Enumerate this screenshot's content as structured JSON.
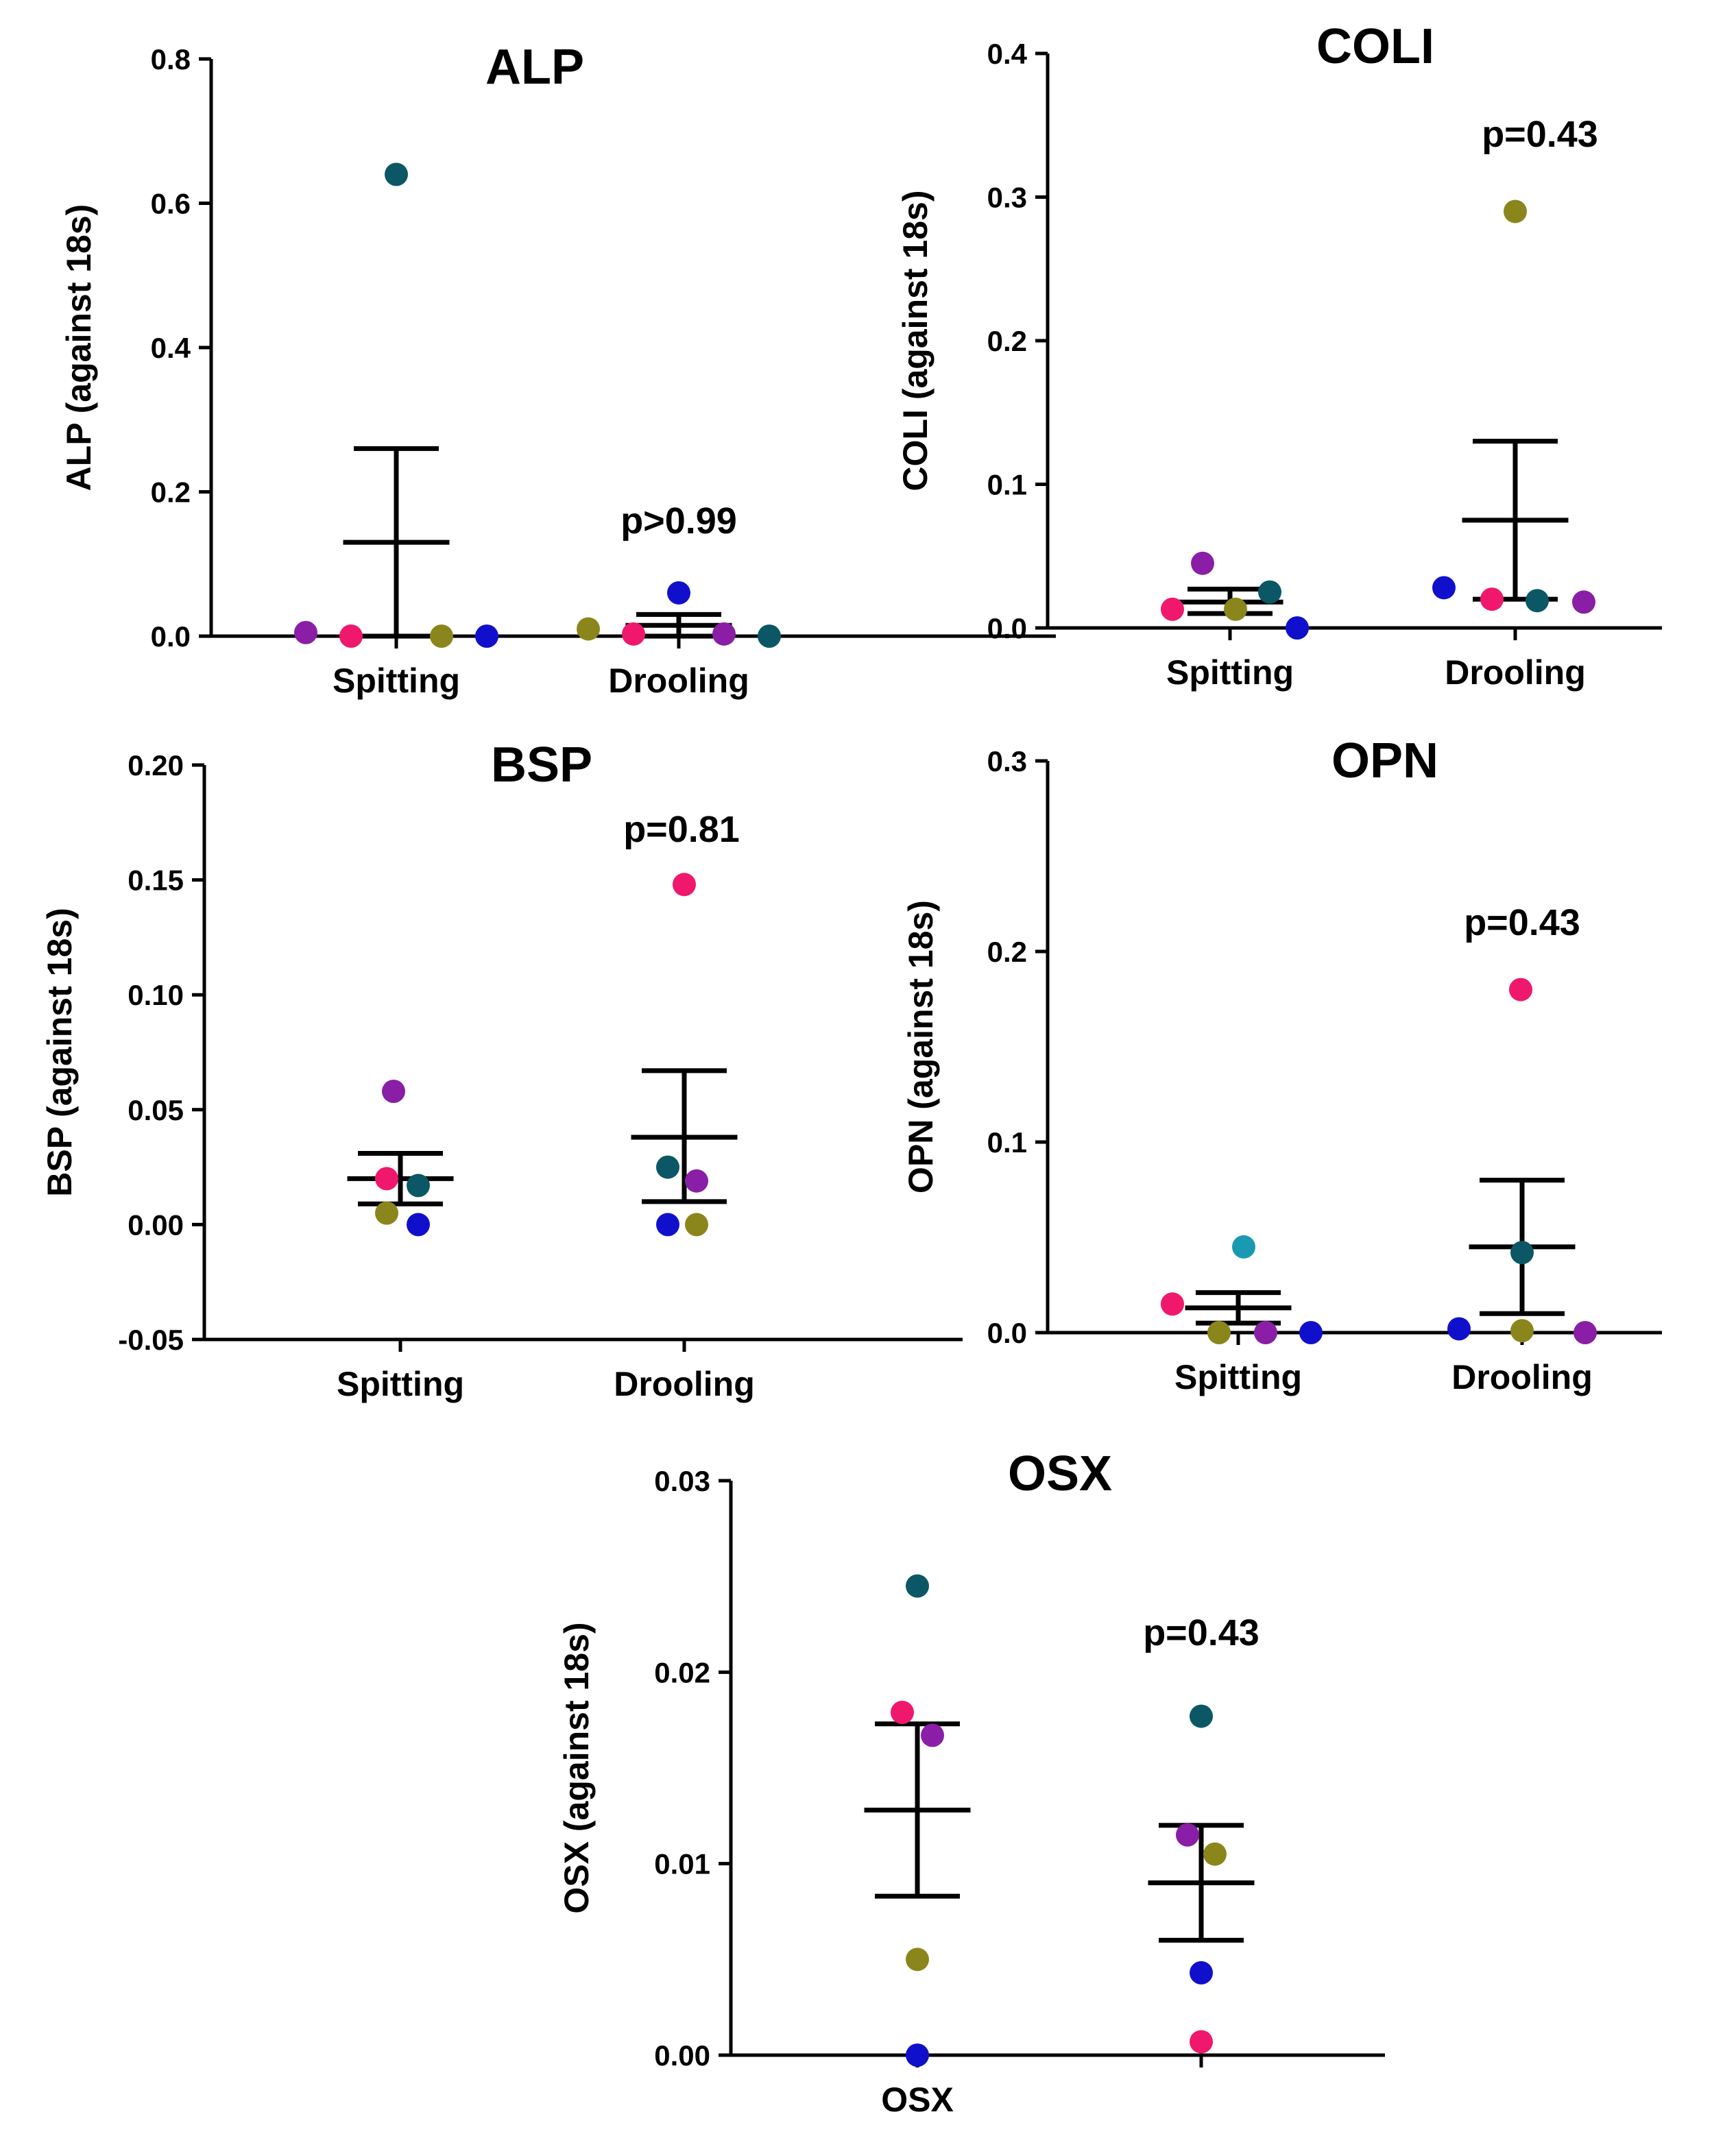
{
  "colors": {
    "teal": "#0b5766",
    "magenta": "#f0186d",
    "purple": "#8a1ea6",
    "olive": "#8a861b",
    "blue": "#1010cc",
    "cyan": "#1a9ab2"
  },
  "chart_data": [
    {
      "id": "alp",
      "type": "scatter",
      "title": "ALP",
      "ylabel": "ALP (against 18s)",
      "categories": [
        "Spitting",
        "Drooling"
      ],
      "ylim": [
        0,
        0.8
      ],
      "yticks": [
        0.0,
        0.2,
        0.4,
        0.6,
        0.8
      ],
      "tick_labels": [
        "0.0",
        "0.2",
        "0.4",
        "0.6",
        "0.8"
      ],
      "p_value": "p>0.99",
      "groups": [
        {
          "category": "Spitting",
          "mean": 0.13,
          "sem_low": 0.0,
          "sem_high": 0.26,
          "points": [
            {
              "value": 0.005,
              "color": "purple"
            },
            {
              "value": 0.0,
              "color": "magenta"
            },
            {
              "value": 0.64,
              "color": "teal"
            },
            {
              "value": 0.0,
              "color": "olive"
            },
            {
              "value": 0.0,
              "color": "blue"
            }
          ]
        },
        {
          "category": "Drooling",
          "mean": 0.015,
          "sem_low": 0.0,
          "sem_high": 0.03,
          "points": [
            {
              "value": 0.01,
              "color": "olive"
            },
            {
              "value": 0.003,
              "color": "magenta"
            },
            {
              "value": 0.06,
              "color": "blue"
            },
            {
              "value": 0.003,
              "color": "purple"
            },
            {
              "value": 0.0,
              "color": "teal"
            }
          ]
        }
      ]
    },
    {
      "id": "coli",
      "type": "scatter",
      "title": "COLI",
      "ylabel": "COLI (against 18s)",
      "categories": [
        "Spitting",
        "Drooling"
      ],
      "ylim": [
        0,
        0.4
      ],
      "yticks": [
        0.0,
        0.1,
        0.2,
        0.3,
        0.4
      ],
      "tick_labels": [
        "0.0",
        "0.1",
        "0.2",
        "0.3",
        "0.4"
      ],
      "p_value": "p=0.43",
      "groups": [
        {
          "category": "Spitting",
          "mean": 0.018,
          "sem_low": 0.01,
          "sem_high": 0.027,
          "points": [
            {
              "value": 0.013,
              "color": "magenta"
            },
            {
              "value": 0.045,
              "color": "purple"
            },
            {
              "value": 0.013,
              "color": "olive"
            },
            {
              "value": 0.025,
              "color": "teal"
            },
            {
              "value": 0.0,
              "color": "blue"
            }
          ]
        },
        {
          "category": "Drooling",
          "mean": 0.075,
          "sem_low": 0.02,
          "sem_high": 0.13,
          "points": [
            {
              "value": 0.028,
              "color": "blue"
            },
            {
              "value": 0.02,
              "color": "magenta"
            },
            {
              "value": 0.29,
              "color": "olive"
            },
            {
              "value": 0.019,
              "color": "teal"
            },
            {
              "value": 0.018,
              "color": "purple"
            }
          ]
        }
      ]
    },
    {
      "id": "bsp",
      "type": "scatter",
      "title": "BSP",
      "ylabel": "BSP (against 18s)",
      "categories": [
        "Spitting",
        "Drooling"
      ],
      "ylim": [
        -0.05,
        0.2
      ],
      "yticks": [
        -0.05,
        0.0,
        0.05,
        0.1,
        0.15,
        0.2
      ],
      "tick_labels": [
        "-0.05",
        "0.00",
        "0.05",
        "0.10",
        "0.15",
        "0.20"
      ],
      "p_value": "p=0.81",
      "groups": [
        {
          "category": "Spitting",
          "mean": 0.02,
          "sem_low": 0.009,
          "sem_high": 0.031,
          "points": [
            {
              "value": 0.02,
              "color": "magenta"
            },
            {
              "value": 0.058,
              "color": "purple"
            },
            {
              "value": 0.005,
              "color": "olive"
            },
            {
              "value": 0.017,
              "color": "teal"
            },
            {
              "value": 0.0,
              "color": "blue"
            }
          ]
        },
        {
          "category": "Drooling",
          "mean": 0.038,
          "sem_low": 0.01,
          "sem_high": 0.067,
          "points": [
            {
              "value": 0.025,
              "color": "teal"
            },
            {
              "value": 0.0,
              "color": "blue"
            },
            {
              "value": 0.148,
              "color": "magenta"
            },
            {
              "value": 0.019,
              "color": "purple"
            },
            {
              "value": 0.0,
              "color": "olive"
            }
          ]
        }
      ]
    },
    {
      "id": "opn",
      "type": "scatter",
      "title": "OPN",
      "ylabel": "OPN (against 18s)",
      "categories": [
        "Spitting",
        "Drooling"
      ],
      "ylim": [
        0,
        0.3
      ],
      "yticks": [
        0.0,
        0.1,
        0.2,
        0.3
      ],
      "tick_labels": [
        "0.0",
        "0.1",
        "0.2",
        "0.3"
      ],
      "p_value": "p=0.43",
      "groups": [
        {
          "category": "Spitting",
          "mean": 0.013,
          "sem_low": 0.005,
          "sem_high": 0.021,
          "points": [
            {
              "value": 0.015,
              "color": "magenta"
            },
            {
              "value": 0.0,
              "color": "olive"
            },
            {
              "value": 0.045,
              "color": "cyan"
            },
            {
              "value": 0.0,
              "color": "purple"
            },
            {
              "value": 0.0,
              "color": "blue"
            }
          ]
        },
        {
          "category": "Drooling",
          "mean": 0.045,
          "sem_low": 0.01,
          "sem_high": 0.08,
          "points": [
            {
              "value": 0.002,
              "color": "blue"
            },
            {
              "value": 0.18,
              "color": "magenta"
            },
            {
              "value": 0.042,
              "color": "teal"
            },
            {
              "value": 0.001,
              "color": "olive"
            },
            {
              "value": 0.0,
              "color": "purple"
            }
          ]
        }
      ]
    },
    {
      "id": "osx",
      "type": "scatter",
      "title": "OSX",
      "ylabel": "OSX (against 18s)",
      "categories": [
        "OSX",
        ""
      ],
      "ylim": [
        0,
        0.03
      ],
      "yticks": [
        0.0,
        0.01,
        0.02,
        0.03
      ],
      "tick_labels": [
        "0.00",
        "0.01",
        "0.02",
        "0.03"
      ],
      "p_value": "p=0.43",
      "groups": [
        {
          "category": "OSX",
          "mean": 0.0128,
          "sem_low": 0.0083,
          "sem_high": 0.0173,
          "points": [
            {
              "value": 0.0179,
              "color": "magenta"
            },
            {
              "value": 0.0245,
              "color": "teal"
            },
            {
              "value": 0.005,
              "color": "olive"
            },
            {
              "value": 0.0,
              "color": "blue"
            },
            {
              "value": 0.0167,
              "color": "purple"
            }
          ]
        },
        {
          "category": "",
          "mean": 0.009,
          "sem_low": 0.006,
          "sem_high": 0.012,
          "points": [
            {
              "value": 0.0115,
              "color": "purple"
            },
            {
              "value": 0.0177,
              "color": "teal"
            },
            {
              "value": 0.0043,
              "color": "blue"
            },
            {
              "value": 0.0007,
              "color": "magenta"
            },
            {
              "value": 0.0105,
              "color": "olive"
            }
          ]
        }
      ]
    }
  ]
}
